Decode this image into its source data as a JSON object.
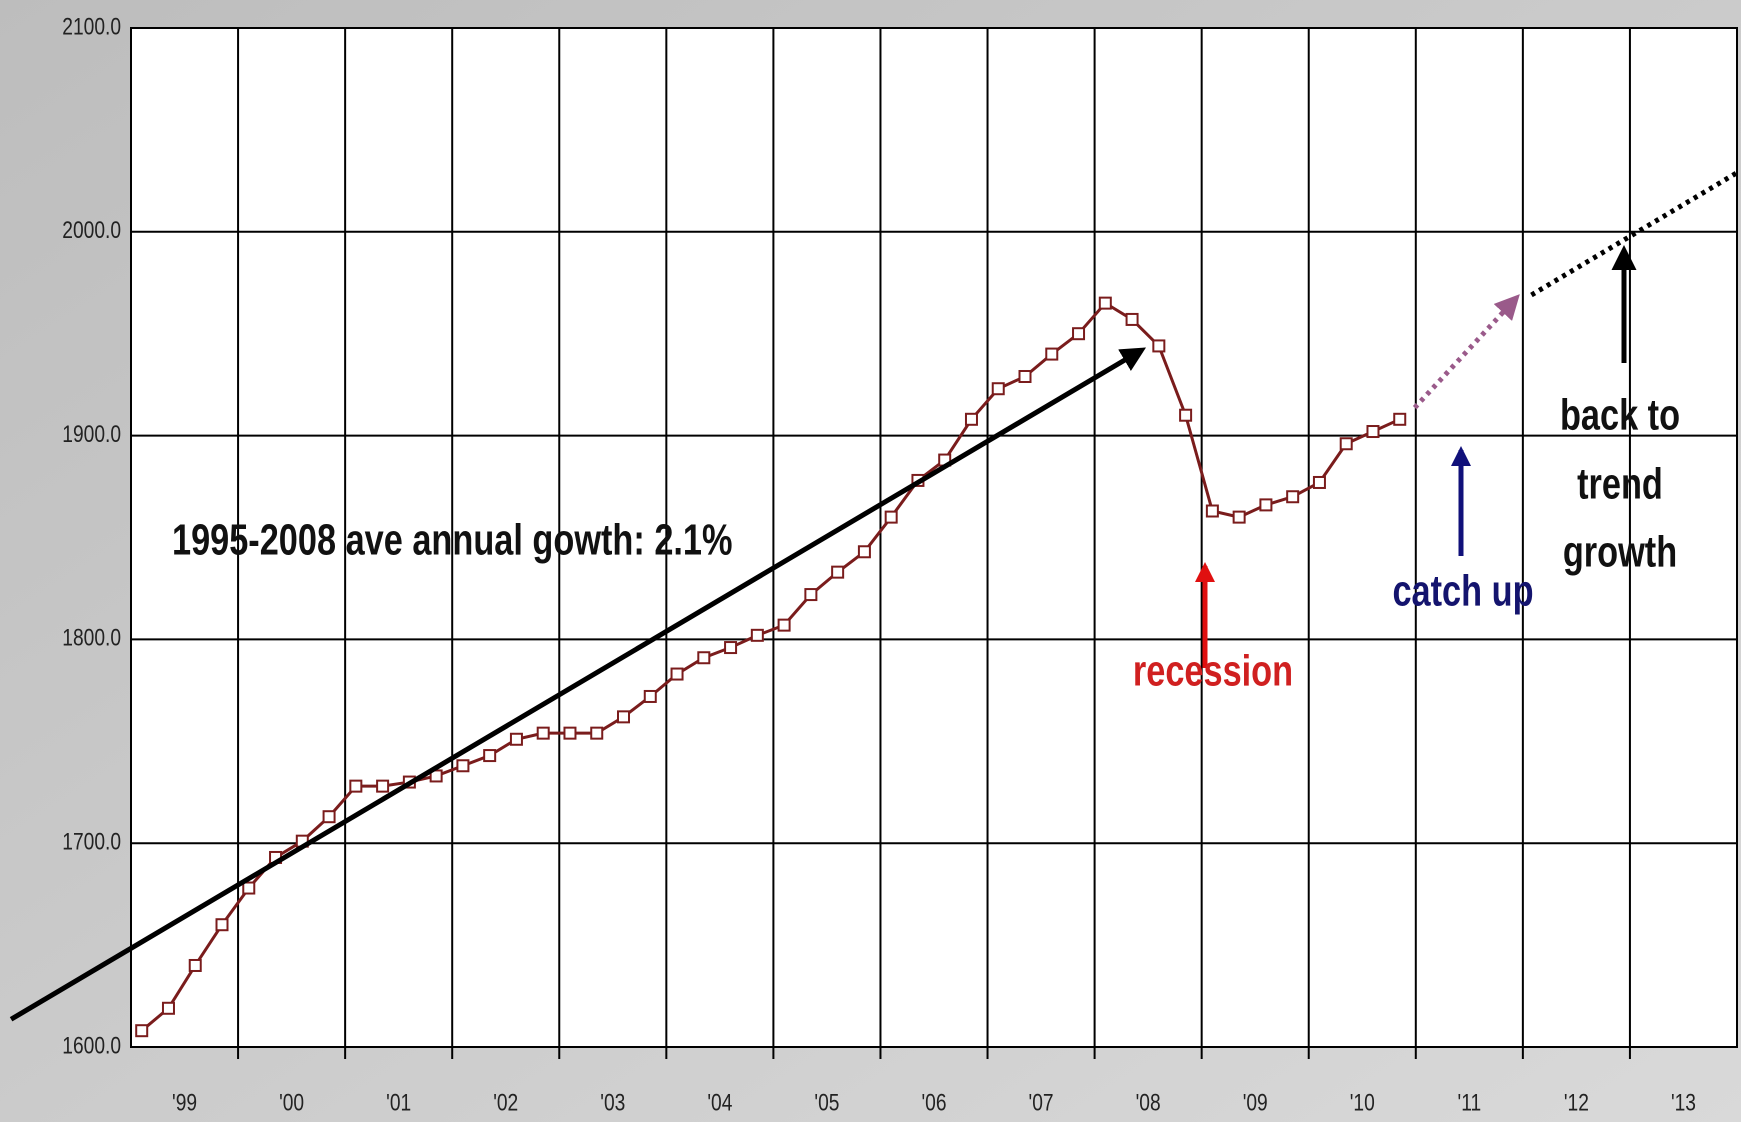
{
  "chart_data": {
    "type": "line",
    "x": [
      1999.1,
      1999.35,
      1999.6,
      1999.85,
      2000.1,
      2000.35,
      2000.6,
      2000.85,
      2001.1,
      2001.35,
      2001.6,
      2001.85,
      2002.1,
      2002.35,
      2002.6,
      2002.85,
      2003.1,
      2003.35,
      2003.6,
      2003.85,
      2004.1,
      2004.35,
      2004.6,
      2004.85,
      2005.1,
      2005.35,
      2005.6,
      2005.85,
      2006.1,
      2006.35,
      2006.6,
      2006.85,
      2007.1,
      2007.35,
      2007.6,
      2007.85,
      2008.1,
      2008.35,
      2008.6,
      2008.85,
      2009.1,
      2009.35,
      2009.6,
      2009.85,
      2010.1,
      2010.35,
      2010.6,
      2010.85
    ],
    "series": [
      {
        "color": "#7a1c1c",
        "values": [
          1608,
          1619,
          1640,
          1660,
          1678,
          1693,
          1701,
          1713,
          1728,
          1728,
          1730,
          1733,
          1738,
          1743,
          1751,
          1754,
          1754,
          1754,
          1762,
          1772,
          1783,
          1791,
          1796,
          1802,
          1807,
          1822,
          1833,
          1843,
          1860,
          1878,
          1888,
          1908,
          1923,
          1929,
          1940,
          1950,
          1965,
          1957,
          1944,
          1910,
          1863,
          1860,
          1866,
          1870,
          1877,
          1896,
          1902,
          1908
        ]
      }
    ],
    "trend_lines": [
      {
        "color": "#000000",
        "style": "solid",
        "x": [
          1997.88,
          2008.44
        ],
        "values": [
          1613.6,
          1942
        ]
      },
      {
        "color": "#9a5a8a",
        "style": "dotted",
        "x": [
          2010.99,
          2011.94
        ],
        "values": [
          1913.7,
          1967.6
        ]
      },
      {
        "color": "#000000",
        "style": "dotted",
        "x": [
          2012.08,
          2014.0
        ],
        "values": [
          1969,
          2029
        ]
      }
    ],
    "xlim": [
      1999,
      2014
    ],
    "xticks": [
      {
        "value": 1999.5,
        "label": "'99"
      },
      {
        "value": 2000.5,
        "label": "'00"
      },
      {
        "value": 2001.5,
        "label": "'01"
      },
      {
        "value": 2002.5,
        "label": "'02"
      },
      {
        "value": 2003.5,
        "label": "'03"
      },
      {
        "value": 2004.5,
        "label": "'04"
      },
      {
        "value": 2005.5,
        "label": "'05"
      },
      {
        "value": 2006.5,
        "label": "'06"
      },
      {
        "value": 2007.5,
        "label": "'07"
      },
      {
        "value": 2008.5,
        "label": "'08"
      },
      {
        "value": 2009.5,
        "label": "'09"
      },
      {
        "value": 2010.5,
        "label": "'10"
      },
      {
        "value": 2011.5,
        "label": "'11"
      },
      {
        "value": 2012.5,
        "label": "'12"
      },
      {
        "value": 2013.5,
        "label": "'13"
      }
    ],
    "ylim": [
      1600,
      2100
    ],
    "yticks": [
      {
        "value": 1600,
        "label": "1600.0"
      },
      {
        "value": 1700,
        "label": "1700.0"
      },
      {
        "value": 1800,
        "label": "1800.0"
      },
      {
        "value": 1900,
        "label": "1900.0"
      },
      {
        "value": 2000,
        "label": "2000.0"
      },
      {
        "value": 2100,
        "label": "2100.0"
      }
    ],
    "grid": true,
    "annotations": {
      "growth": "1995-2008 ave annual gowth: 2.1%",
      "recession": "recession",
      "catch_up": "catch up",
      "trend": [
        "back to",
        "trend",
        "growth"
      ]
    }
  }
}
